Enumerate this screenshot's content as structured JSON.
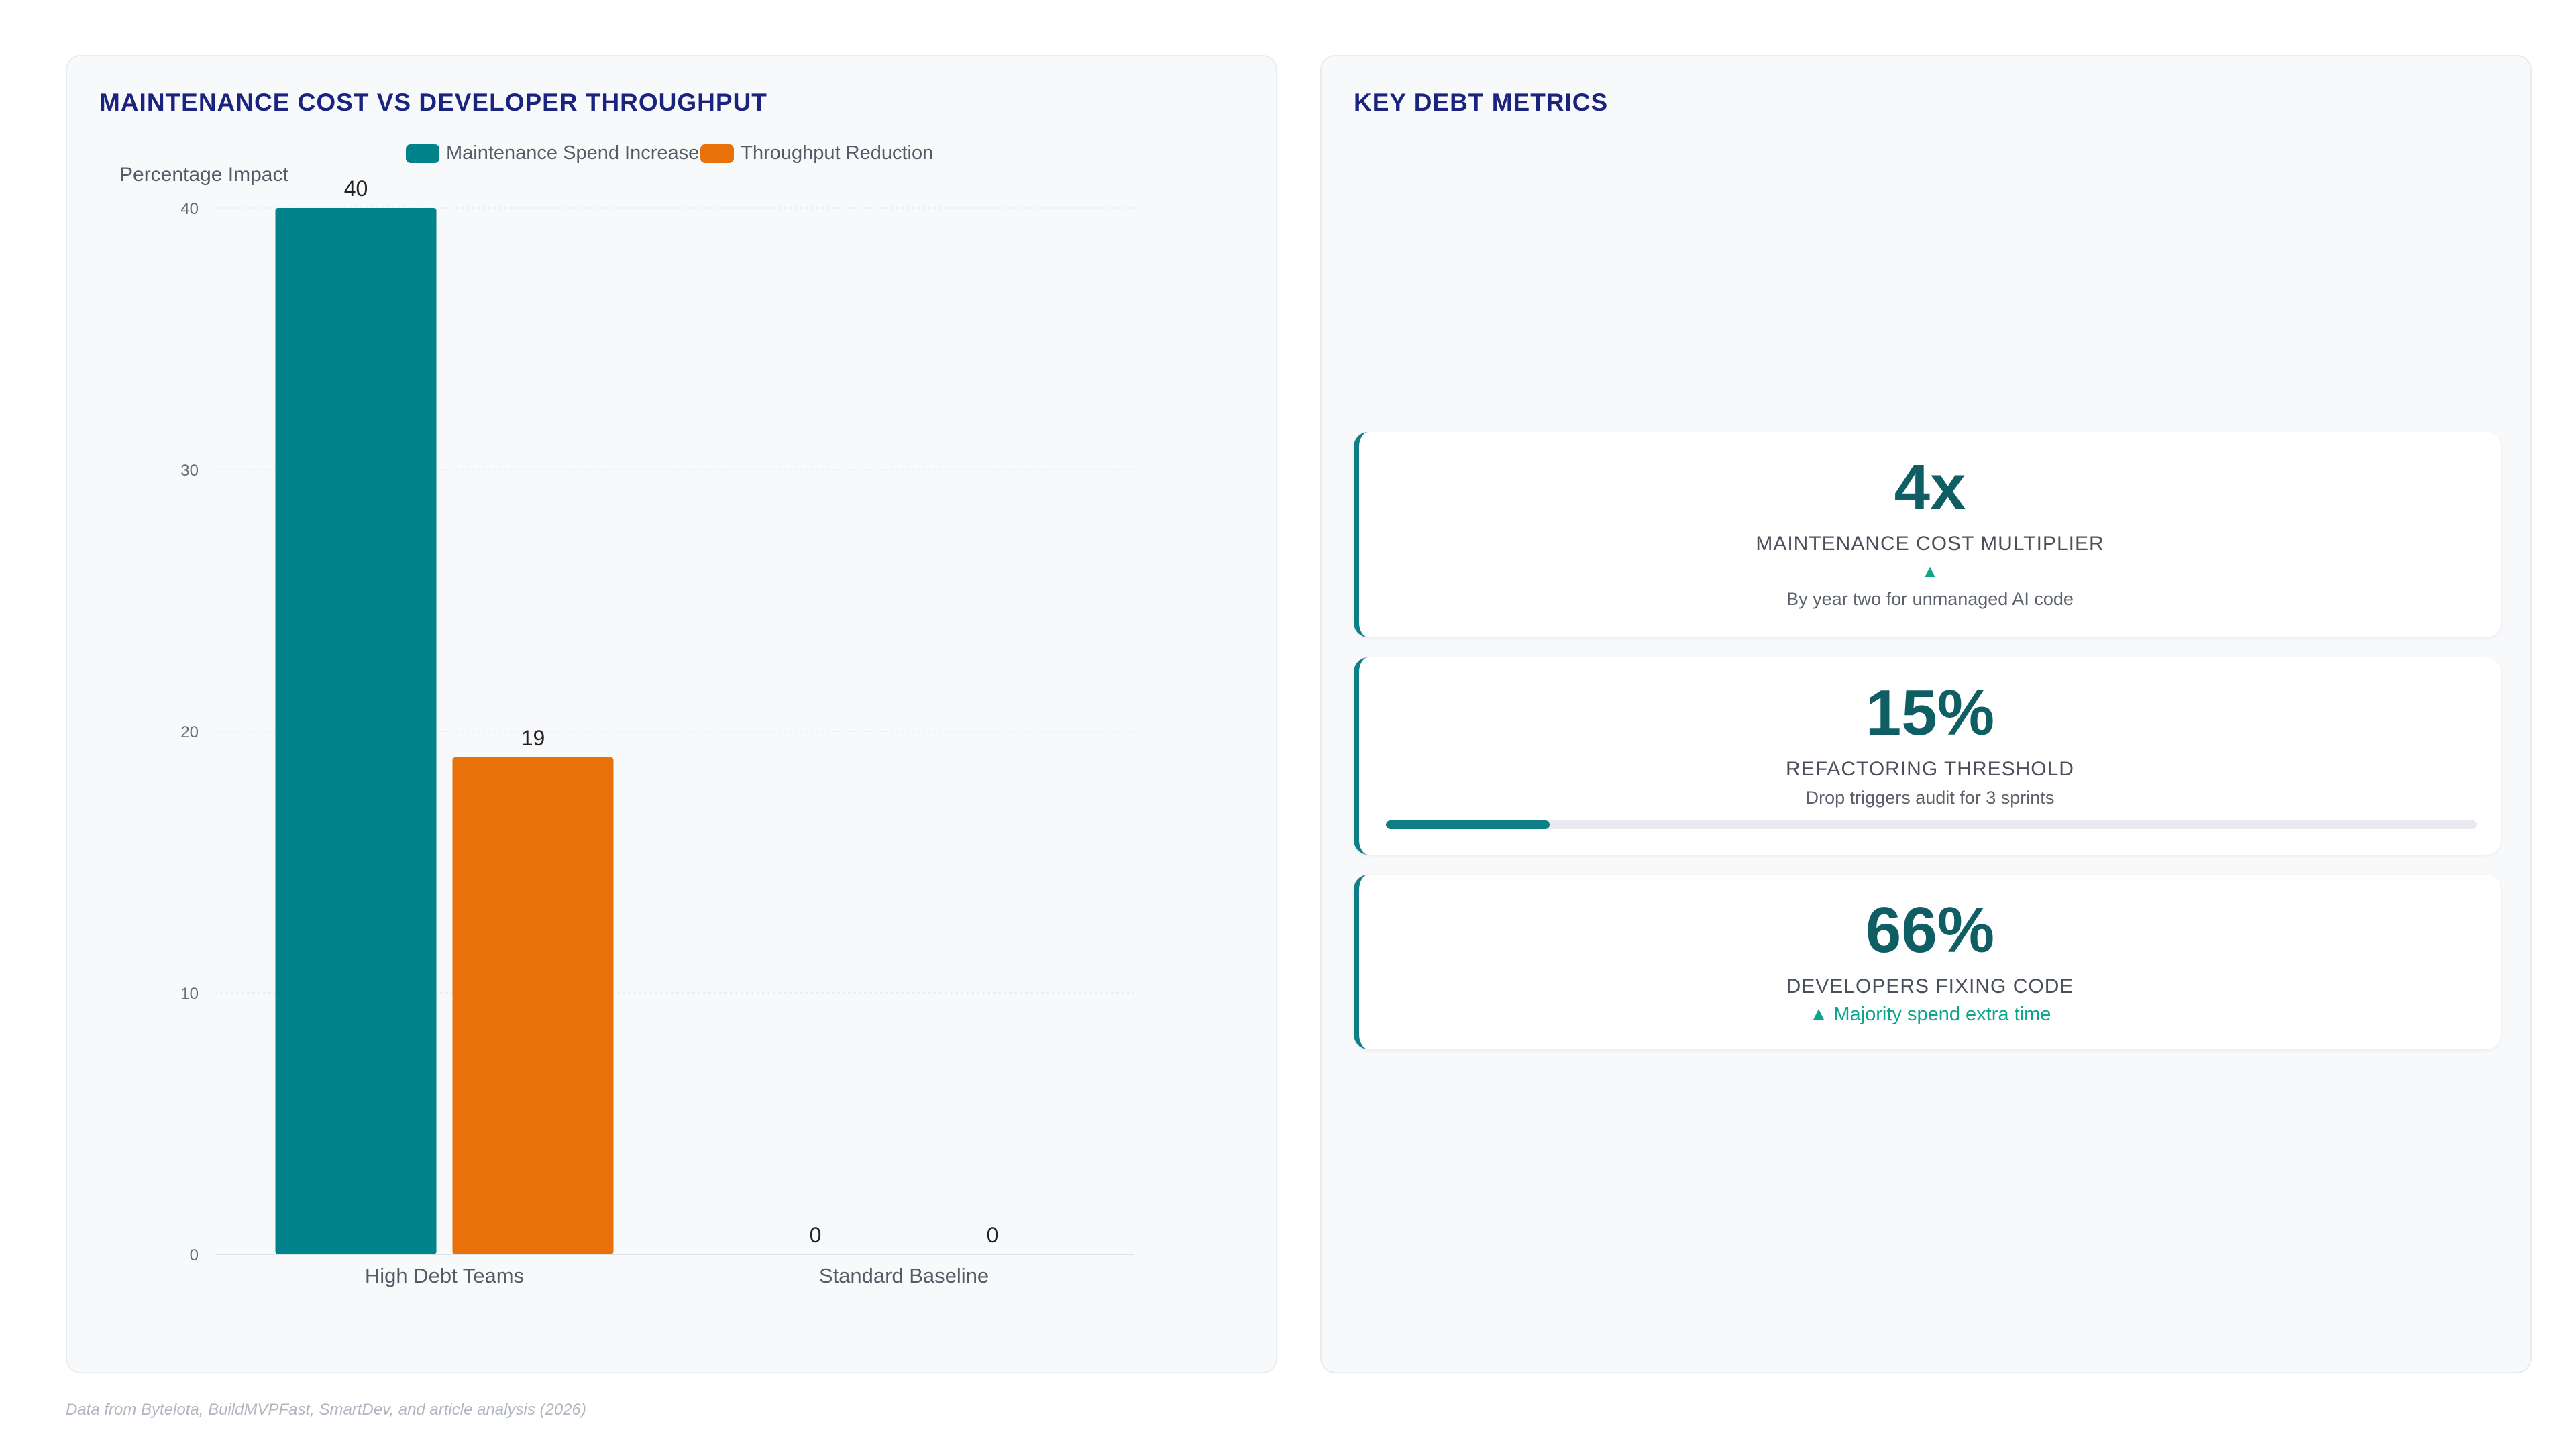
{
  "left_panel": {
    "title": "MAINTENANCE COST VS DEVELOPER THROUGHPUT"
  },
  "chart_data": {
    "type": "bar",
    "title": "MAINTENANCE COST VS DEVELOPER THROUGHPUT",
    "categories": [
      "High Debt Teams",
      "Standard Baseline"
    ],
    "series": [
      {
        "name": "Maintenance Spend Increase",
        "color": "#00838a",
        "values": [
          40,
          0
        ]
      },
      {
        "name": "Throughput Reduction",
        "color": "#e8710a",
        "values": [
          19,
          0
        ]
      }
    ],
    "ylabel": "Percentage Impact",
    "xlabel": "",
    "ylim": [
      0,
      40
    ],
    "yticks": [
      0,
      10,
      20,
      30,
      40
    ],
    "grid": true,
    "legend": "top"
  },
  "right_panel": {
    "title": "KEY DEBT METRICS",
    "metrics": [
      {
        "value": "4x",
        "label": "MAINTENANCE COST MULTIPLIER",
        "trend_icon": "▲",
        "sub": "By year two for unmanaged AI code"
      },
      {
        "value": "15%",
        "label": "REFACTORING THRESHOLD",
        "sub": "Drop triggers audit for 3 sprints",
        "progress": 0.15
      },
      {
        "value": "66%",
        "label": "DEVELOPERS FIXING CODE",
        "trend_text": "▲ Majority spend extra time"
      }
    ]
  },
  "colors": {
    "accent": "#0e7f86",
    "title": "#1a237e",
    "positive": "#0ea58a",
    "orange": "#e8710a"
  },
  "footer": {
    "source": "Data from Bytelota, BuildMVPFast, SmartDev, and article analysis (2026)"
  }
}
